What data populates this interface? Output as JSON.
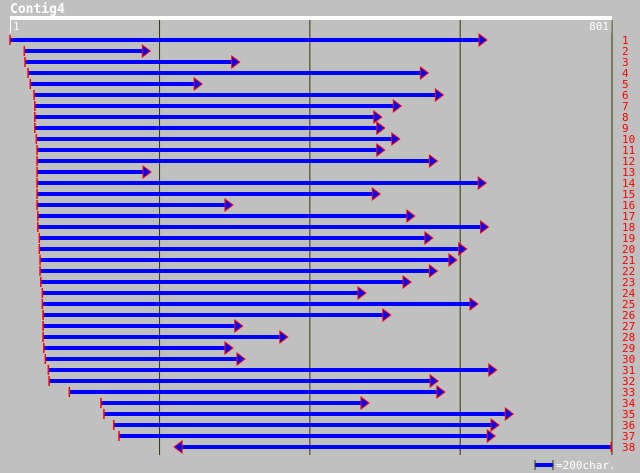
{
  "title": "Contig4",
  "ruler": {
    "start": "1",
    "end": "801"
  },
  "legend": {
    "text": "=200char.",
    "scale_chars": 200
  },
  "colors": {
    "bar": "#0000ff",
    "tick": "#ff0000",
    "label": "#ff0000",
    "grid": "#333300"
  },
  "chart_data": {
    "type": "assembly",
    "length": 801,
    "gridlines": [
      200,
      400,
      600
    ],
    "reads": [
      {
        "id": "1",
        "start": 1,
        "end": 633,
        "dir": "+"
      },
      {
        "id": "2",
        "start": 20,
        "end": 185,
        "dir": "+"
      },
      {
        "id": "3",
        "start": 21,
        "end": 304,
        "dir": "+"
      },
      {
        "id": "4",
        "start": 25,
        "end": 555,
        "dir": "+"
      },
      {
        "id": "5",
        "start": 28,
        "end": 254,
        "dir": "+"
      },
      {
        "id": "6",
        "start": 33,
        "end": 575,
        "dir": "+"
      },
      {
        "id": "7",
        "start": 34,
        "end": 519,
        "dir": "+"
      },
      {
        "id": "8",
        "start": 34,
        "end": 493,
        "dir": "+"
      },
      {
        "id": "9",
        "start": 34,
        "end": 497,
        "dir": "+"
      },
      {
        "id": "10",
        "start": 36,
        "end": 517,
        "dir": "+"
      },
      {
        "id": "11",
        "start": 37,
        "end": 497,
        "dir": "+"
      },
      {
        "id": "12",
        "start": 37,
        "end": 567,
        "dir": "+"
      },
      {
        "id": "13",
        "start": 37,
        "end": 186,
        "dir": "+"
      },
      {
        "id": "14",
        "start": 37,
        "end": 632,
        "dir": "+"
      },
      {
        "id": "15",
        "start": 37,
        "end": 491,
        "dir": "+"
      },
      {
        "id": "16",
        "start": 37,
        "end": 295,
        "dir": "+"
      },
      {
        "id": "17",
        "start": 38,
        "end": 537,
        "dir": "+"
      },
      {
        "id": "18",
        "start": 38,
        "end": 635,
        "dir": "+"
      },
      {
        "id": "19",
        "start": 40,
        "end": 561,
        "dir": "+"
      },
      {
        "id": "20",
        "start": 40,
        "end": 606,
        "dir": "+"
      },
      {
        "id": "21",
        "start": 41,
        "end": 593,
        "dir": "+"
      },
      {
        "id": "22",
        "start": 41,
        "end": 567,
        "dir": "+"
      },
      {
        "id": "23",
        "start": 42,
        "end": 532,
        "dir": "+"
      },
      {
        "id": "24",
        "start": 44,
        "end": 472,
        "dir": "+"
      },
      {
        "id": "25",
        "start": 44,
        "end": 621,
        "dir": "+"
      },
      {
        "id": "26",
        "start": 45,
        "end": 505,
        "dir": "+"
      },
      {
        "id": "27",
        "start": 45,
        "end": 308,
        "dir": "+"
      },
      {
        "id": "28",
        "start": 45,
        "end": 368,
        "dir": "+"
      },
      {
        "id": "29",
        "start": 46,
        "end": 295,
        "dir": "+"
      },
      {
        "id": "30",
        "start": 48,
        "end": 311,
        "dir": "+"
      },
      {
        "id": "31",
        "start": 52,
        "end": 646,
        "dir": "+"
      },
      {
        "id": "32",
        "start": 53,
        "end": 568,
        "dir": "+"
      },
      {
        "id": "33",
        "start": 80,
        "end": 577,
        "dir": "+"
      },
      {
        "id": "34",
        "start": 122,
        "end": 476,
        "dir": "+"
      },
      {
        "id": "35",
        "start": 126,
        "end": 668,
        "dir": "+"
      },
      {
        "id": "36",
        "start": 139,
        "end": 649,
        "dir": "+"
      },
      {
        "id": "37",
        "start": 146,
        "end": 644,
        "dir": "+"
      },
      {
        "id": "38",
        "start": 222,
        "end": 801,
        "dir": "-"
      }
    ]
  }
}
